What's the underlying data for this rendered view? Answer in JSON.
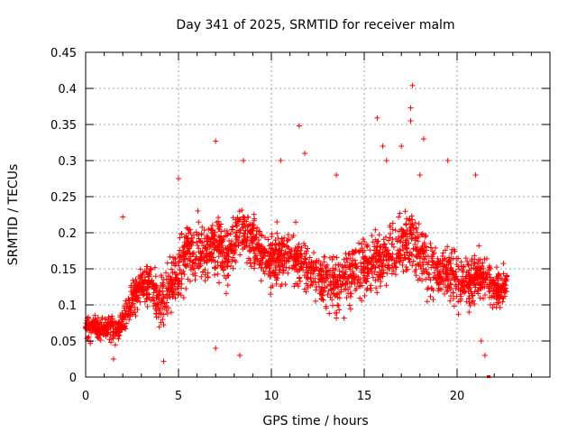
{
  "chart_data": {
    "type": "scatter",
    "title": "Day 341 of 2025, SRMTID for receiver malm",
    "xlabel": "GPS time / hours",
    "ylabel": "SRMTID / TECUs",
    "xlim": [
      0,
      25
    ],
    "ylim": [
      0,
      0.45
    ],
    "x_ticks": [
      0,
      5,
      10,
      15,
      20
    ],
    "y_ticks": [
      0,
      0.05,
      0.1,
      0.15,
      0.2,
      0.25,
      0.3,
      0.35,
      0.4,
      0.45
    ],
    "x_tick_labels": [
      "0",
      "5",
      "10",
      "15",
      "20"
    ],
    "y_tick_labels": [
      "0",
      "0.05",
      "0.1",
      "0.15",
      "0.2",
      "0.25",
      "0.3",
      "0.35",
      "0.4",
      "0.45"
    ],
    "grid": true,
    "marker": "+",
    "marker_color": "#ff0000",
    "series": [
      {
        "name": "SRMTID",
        "trend": [
          [
            0.0,
            0.07
          ],
          [
            0.5,
            0.068
          ],
          [
            1.0,
            0.07
          ],
          [
            1.5,
            0.065
          ],
          [
            2.0,
            0.075
          ],
          [
            2.5,
            0.11
          ],
          [
            3.0,
            0.13
          ],
          [
            3.5,
            0.13
          ],
          [
            4.0,
            0.1
          ],
          [
            4.5,
            0.12
          ],
          [
            5.0,
            0.15
          ],
          [
            5.5,
            0.175
          ],
          [
            6.0,
            0.18
          ],
          [
            6.5,
            0.17
          ],
          [
            7.0,
            0.19
          ],
          [
            7.5,
            0.16
          ],
          [
            8.0,
            0.19
          ],
          [
            8.5,
            0.2
          ],
          [
            9.0,
            0.19
          ],
          [
            9.5,
            0.17
          ],
          [
            10.0,
            0.16
          ],
          [
            10.5,
            0.17
          ],
          [
            11.0,
            0.165
          ],
          [
            11.5,
            0.16
          ],
          [
            12.0,
            0.15
          ],
          [
            12.5,
            0.14
          ],
          [
            13.0,
            0.13
          ],
          [
            13.5,
            0.125
          ],
          [
            14.0,
            0.14
          ],
          [
            14.5,
            0.15
          ],
          [
            15.0,
            0.15
          ],
          [
            15.5,
            0.16
          ],
          [
            16.0,
            0.165
          ],
          [
            16.5,
            0.17
          ],
          [
            17.0,
            0.18
          ],
          [
            17.5,
            0.2
          ],
          [
            18.0,
            0.17
          ],
          [
            18.5,
            0.15
          ],
          [
            19.0,
            0.15
          ],
          [
            19.5,
            0.15
          ],
          [
            20.0,
            0.14
          ],
          [
            20.5,
            0.13
          ],
          [
            21.0,
            0.14
          ],
          [
            21.5,
            0.14
          ],
          [
            22.0,
            0.12
          ],
          [
            22.7,
            0.13
          ]
        ],
        "spread": [
          [
            0.0,
            0.025
          ],
          [
            2.0,
            0.03
          ],
          [
            3.0,
            0.045
          ],
          [
            5.0,
            0.06
          ],
          [
            8.0,
            0.06
          ],
          [
            12.0,
            0.055
          ],
          [
            15.0,
            0.06
          ],
          [
            18.0,
            0.065
          ],
          [
            21.0,
            0.055
          ],
          [
            22.7,
            0.04
          ]
        ],
        "outliers": [
          [
            7.0,
            0.327
          ],
          [
            11.5,
            0.348
          ],
          [
            15.7,
            0.359
          ],
          [
            17.5,
            0.373
          ],
          [
            17.6,
            0.404
          ],
          [
            17.5,
            0.355
          ],
          [
            17.0,
            0.32
          ],
          [
            18.2,
            0.33
          ],
          [
            19.5,
            0.3
          ],
          [
            8.5,
            0.3
          ],
          [
            10.5,
            0.3
          ],
          [
            11.8,
            0.31
          ],
          [
            2.0,
            0.222
          ],
          [
            5.0,
            0.275
          ],
          [
            16.2,
            0.3
          ],
          [
            21.0,
            0.28
          ],
          [
            8.3,
            0.03
          ],
          [
            7.0,
            0.04
          ],
          [
            4.2,
            0.022
          ],
          [
            1.5,
            0.025
          ],
          [
            21.5,
            0.03
          ],
          [
            21.3,
            0.05
          ],
          [
            18.0,
            0.28
          ],
          [
            16.0,
            0.32
          ],
          [
            13.5,
            0.28
          ]
        ],
        "x_end": 22.7,
        "points_per_hour": 110
      }
    ]
  }
}
